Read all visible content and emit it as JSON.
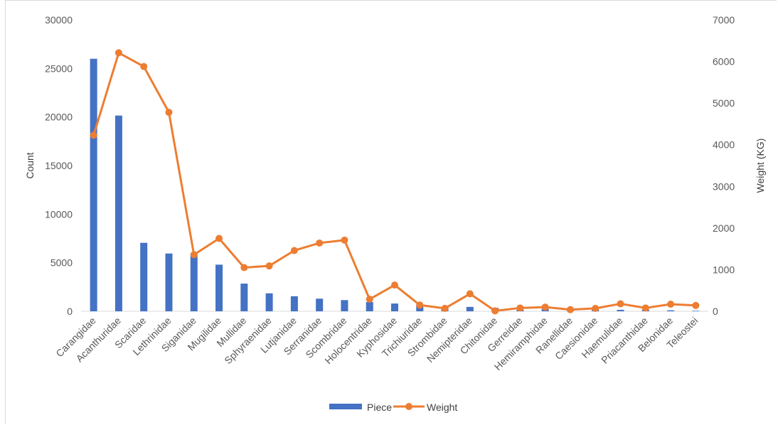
{
  "chart_data": {
    "type": "bar",
    "categories": [
      "Carangidae",
      "Acanthuridae",
      "Scaridae",
      "Lethrinidae",
      "Siganidae",
      "Mugilidae",
      "Mullidae",
      "Sphyraenidae",
      "Lutjanidae",
      "Serranidae",
      "Scombridae",
      "Holocentridae",
      "Kyphosidae",
      "Trichiuridae",
      "Strombidae",
      "Nemipteridae",
      "Chitonidae",
      "Gerreidae",
      "Hemiramphidae",
      "Ranellidae",
      "Caesionidae",
      "Haemulidae",
      "Priacanthidae",
      "Belonidae",
      "Teleostei"
    ],
    "series": [
      {
        "name": "Piece",
        "type": "bar",
        "axis": "left",
        "color": "#4472C4",
        "values": [
          26000,
          20150,
          7050,
          5950,
          5900,
          4800,
          2850,
          1850,
          1550,
          1300,
          1150,
          950,
          800,
          700,
          350,
          450,
          350,
          150,
          250,
          300,
          200,
          150,
          150,
          100,
          50
        ]
      },
      {
        "name": "Weight",
        "type": "line",
        "axis": "right",
        "color": "#ED7D31",
        "values": [
          4230,
          6210,
          5880,
          4780,
          1360,
          1750,
          1050,
          1090,
          1460,
          1640,
          1710,
          290,
          630,
          150,
          70,
          420,
          10,
          80,
          100,
          40,
          70,
          180,
          80,
          170,
          140
        ]
      }
    ],
    "xlabel": "",
    "ylabel": "Count",
    "y2label": "Weight (KG)",
    "ylim": [
      0,
      30000
    ],
    "y2lim": [
      0,
      7000
    ],
    "yticks": [
      "0",
      "5000",
      "10000",
      "15000",
      "20000",
      "25000",
      "30000"
    ],
    "y2ticks": [
      "0",
      "1000",
      "2000",
      "3000",
      "4000",
      "5000",
      "6000",
      "7000"
    ],
    "grid": false,
    "legend": "bottom"
  }
}
